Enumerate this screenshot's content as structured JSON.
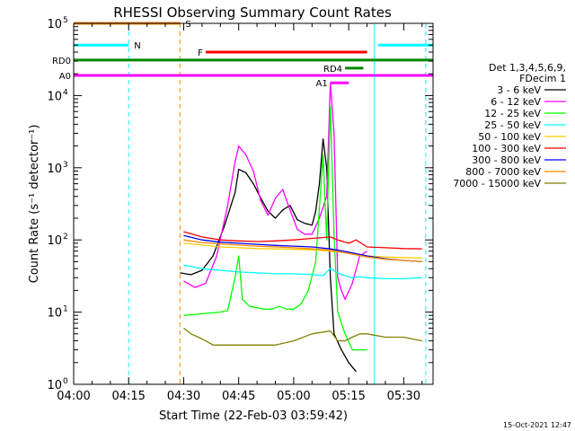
{
  "chart_data": {
    "type": "line",
    "title": "RHESSI Observing Summary Count Rates",
    "xlabel": "Start Time (22-Feb-03 03:59:42)",
    "ylabel": "Count Rate (s⁻¹ detector⁻¹)",
    "xlim": [
      "04:00",
      "05:38"
    ],
    "ylim": [
      1,
      100000
    ],
    "yscale": "log",
    "x_ticks": [
      "04:00",
      "04:15",
      "04:30",
      "04:45",
      "05:00",
      "05:15",
      "05:30"
    ],
    "y_ticks": [
      {
        "base": "10",
        "exp": "0"
      },
      {
        "base": "10",
        "exp": "1"
      },
      {
        "base": "10",
        "exp": "2"
      },
      {
        "base": "10",
        "exp": "3"
      },
      {
        "base": "10",
        "exp": "4"
      },
      {
        "base": "10",
        "exp": "5"
      }
    ],
    "legend_header": [
      "Det 1,3,4,5,6,9,",
      "FDecim 1"
    ],
    "legend_position": "right",
    "footer_date": "15-Oct-2021 12:47",
    "series": [
      {
        "name": "3 - 6 keV",
        "color": "#000000",
        "x": [
          "04:29",
          "04:32",
          "04:35",
          "04:38",
          "04:41",
          "04:44",
          "04:45",
          "04:47",
          "04:49",
          "04:51",
          "04:53",
          "04:55",
          "04:57",
          "04:59",
          "05:01",
          "05:03",
          "05:05",
          "05:06",
          "05:07",
          "05:08",
          "05:09",
          "05:10",
          "05:11",
          "05:13",
          "05:15",
          "05:17"
        ],
        "values": [
          35,
          33,
          38,
          60,
          150,
          450,
          950,
          850,
          600,
          380,
          250,
          200,
          260,
          300,
          190,
          170,
          160,
          250,
          600,
          2500,
          1000,
          30,
          5,
          3,
          2,
          1.5
        ]
      },
      {
        "name": "6 - 12 keV",
        "color": "#ff00ff",
        "x": [
          "04:30",
          "04:33",
          "04:36",
          "04:39",
          "04:42",
          "04:44",
          "04:45",
          "04:47",
          "04:49",
          "04:51",
          "04:53",
          "04:55",
          "04:57",
          "04:59",
          "05:01",
          "05:03",
          "05:05",
          "05:07",
          "05:09",
          "05:10",
          "05:11",
          "05:12",
          "05:13",
          "05:14",
          "05:16",
          "05:18",
          "05:20"
        ],
        "values": [
          27,
          22,
          25,
          60,
          300,
          1200,
          2000,
          1500,
          900,
          350,
          220,
          380,
          500,
          260,
          140,
          120,
          120,
          200,
          400,
          15000,
          3000,
          30,
          20,
          15,
          25,
          60,
          70
        ]
      },
      {
        "name": "12 - 25 keV",
        "color": "#00ff00",
        "x": [
          "04:30",
          "04:35",
          "04:40",
          "04:42",
          "04:44",
          "04:45",
          "04:46",
          "04:48",
          "04:50",
          "04:52",
          "04:54",
          "04:56",
          "04:58",
          "05:00",
          "05:02",
          "05:04",
          "05:06",
          "05:08",
          "05:09",
          "05:10",
          "05:11",
          "05:12",
          "05:14",
          "05:16",
          "05:18",
          "05:20"
        ],
        "values": [
          9,
          9.5,
          10,
          10.5,
          30,
          60,
          15,
          12,
          11.5,
          11,
          11,
          12,
          11,
          11,
          13,
          20,
          50,
          1500,
          100,
          7000,
          120,
          10,
          5,
          3,
          3,
          3
        ]
      },
      {
        "name": "25 - 50 keV",
        "color": "#00ffff",
        "x": [
          "04:30",
          "04:35",
          "04:40",
          "04:45",
          "04:50",
          "04:55",
          "05:00",
          "05:05",
          "05:08",
          "05:10",
          "05:12",
          "05:14",
          "05:16",
          "05:18",
          "05:20",
          "05:25",
          "05:30",
          "05:35"
        ],
        "values": [
          45,
          40,
          38,
          36,
          35,
          34,
          34,
          33,
          32,
          40,
          35,
          32,
          30,
          31,
          30,
          29,
          29,
          30
        ]
      },
      {
        "name": "50 - 100 keV",
        "color": "#ffcc00",
        "x": [
          "04:30",
          "04:35",
          "04:40",
          "04:45",
          "04:50",
          "04:55",
          "05:00",
          "05:05",
          "05:10",
          "05:15",
          "05:20",
          "05:25",
          "05:30",
          "05:35"
        ],
        "values": [
          90,
          85,
          80,
          78,
          76,
          75,
          74,
          73,
          70,
          66,
          60,
          58,
          57,
          56
        ]
      },
      {
        "name": "100 - 300 keV",
        "color": "#ff0000",
        "x": [
          "04:30",
          "04:35",
          "04:40",
          "04:45",
          "04:50",
          "04:55",
          "05:00",
          "05:05",
          "05:10",
          "05:12",
          "05:15",
          "05:17",
          "05:20",
          "05:25",
          "05:30",
          "05:35"
        ],
        "values": [
          130,
          110,
          100,
          97,
          95,
          97,
          100,
          105,
          110,
          100,
          90,
          100,
          80,
          78,
          76,
          75
        ]
      },
      {
        "name": "300 - 800 keV",
        "color": "#0000ff",
        "x": [
          "04:30",
          "04:35",
          "04:40",
          "04:45",
          "04:50",
          "04:55",
          "05:00",
          "05:05",
          "05:10",
          "05:15",
          "05:20",
          "05:25",
          "05:30",
          "05:35"
        ],
        "values": [
          115,
          100,
          93,
          90,
          87,
          84,
          82,
          80,
          75,
          68,
          60,
          55,
          52,
          50
        ]
      },
      {
        "name": "800 - 7000 keV",
        "color": "#ff8800",
        "x": [
          "04:30",
          "04:35",
          "04:40",
          "04:45",
          "04:50",
          "04:55",
          "05:00",
          "05:05",
          "05:10",
          "05:15",
          "05:20",
          "05:25",
          "05:30",
          "05:35"
        ],
        "values": [
          100,
          92,
          88,
          85,
          82,
          80,
          78,
          75,
          72,
          65,
          58,
          54,
          52,
          50
        ]
      },
      {
        "name": "7000 - 15000 keV",
        "color": "#808000",
        "x": [
          "04:30",
          "04:32",
          "04:34",
          "04:36",
          "04:38",
          "04:40",
          "04:45",
          "04:50",
          "04:55",
          "05:00",
          "05:05",
          "05:10",
          "05:12",
          "05:14",
          "05:16",
          "05:18",
          "05:20",
          "05:25",
          "05:30",
          "05:35"
        ],
        "values": [
          6,
          5,
          4.5,
          4,
          3.5,
          3.5,
          3.5,
          3.5,
          3.5,
          4,
          5,
          5.5,
          4,
          4,
          4.5,
          5,
          5,
          4.5,
          4.5,
          4
        ]
      }
    ],
    "flag_bars": [
      {
        "label": "S",
        "color": "#ff8800",
        "start": "04:00",
        "end": "04:29",
        "level": 100000
      },
      {
        "label": "N",
        "color": "#00ffff",
        "start": "04:00",
        "end": "04:15",
        "level": 50000
      },
      {
        "label": "",
        "color": "#00ffff",
        "start": "05:23",
        "end": "05:38",
        "level": 50000
      },
      {
        "label": "F",
        "color": "#ff0000",
        "start": "04:36",
        "end": "05:20",
        "level": 40000
      },
      {
        "label": "RD0",
        "color": "#008800",
        "start": "04:00",
        "end": "05:38",
        "level": 31000
      },
      {
        "label": "RD4",
        "color": "#008800",
        "start": "05:14",
        "end": "05:19",
        "level": 24000
      },
      {
        "label": "A0",
        "color": "#ff00ff",
        "start": "04:00",
        "end": "05:38",
        "level": 19000
      },
      {
        "label": "A1",
        "color": "#ff00ff",
        "start": "05:10",
        "end": "05:15",
        "level": 15000
      }
    ],
    "vlines": [
      {
        "at": "04:15",
        "color": "#00ffff",
        "style": "dashed"
      },
      {
        "at": "04:29",
        "color": "#ff8800",
        "style": "dashed"
      },
      {
        "at": "05:22",
        "color": "#00ffff",
        "style": "solid"
      },
      {
        "at": "05:36",
        "color": "#00ffff",
        "style": "dashed"
      }
    ]
  }
}
